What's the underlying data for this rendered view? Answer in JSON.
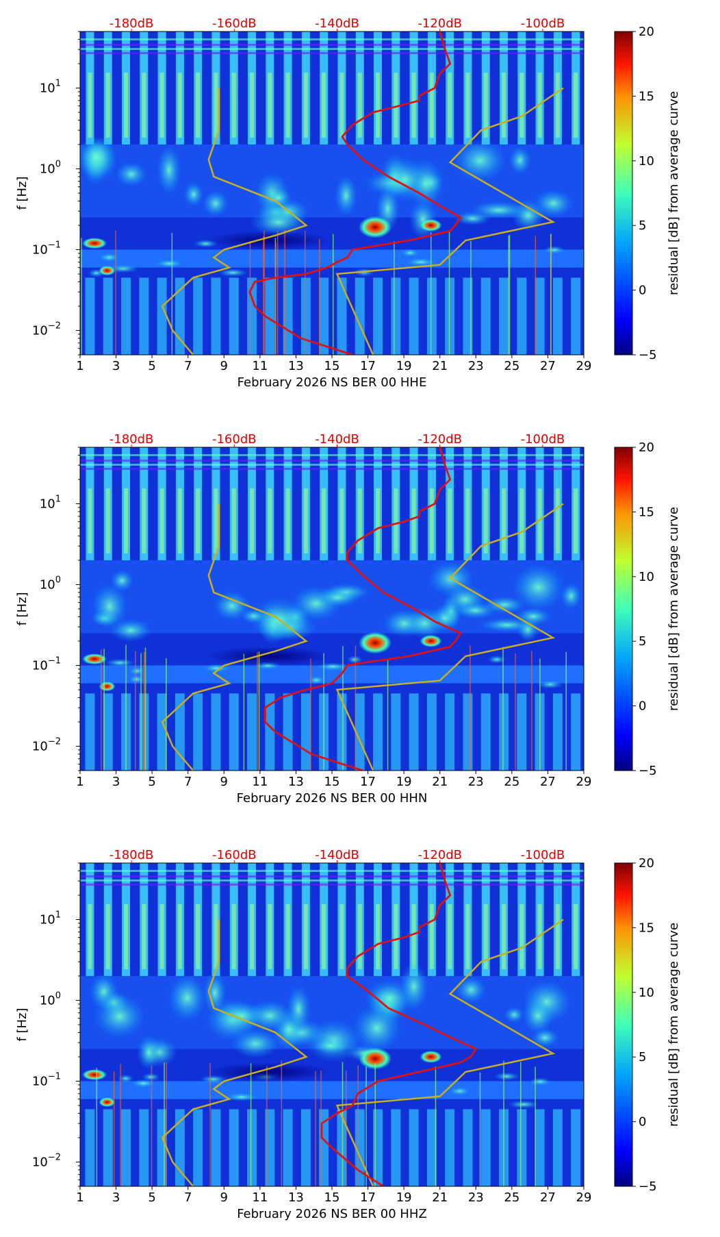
{
  "chart_data": [
    {
      "type": "heatmap",
      "xlabel": "February 2026 NS BER 00 HHE",
      "ylabel": "f [Hz]",
      "x_ticks": [
        "1",
        "3",
        "5",
        "7",
        "9",
        "11",
        "13",
        "15",
        "17",
        "19",
        "21",
        "23",
        "25",
        "27",
        "29"
      ],
      "xlim": [
        1,
        29
      ],
      "y_scale": "log",
      "ylim": [
        0.005,
        50
      ],
      "y_ticks": [
        {
          "value": 0.01,
          "base": "10",
          "exp": "−2"
        },
        {
          "value": 0.1,
          "base": "10",
          "exp": "−1"
        },
        {
          "value": 1,
          "base": "10",
          "exp": "0"
        },
        {
          "value": 10,
          "base": "10",
          "exp": "1"
        }
      ],
      "top_ticks": [
        "-180dB",
        "-160dB",
        "-140dB",
        "-120dB",
        "-100dB"
      ],
      "top_tick_color": "#e00000",
      "colorbar": {
        "label": "residual [dB] from average curve",
        "min": -5,
        "max": 20,
        "ticks": [
          "−5",
          "0",
          "5",
          "10",
          "15",
          "20"
        ]
      },
      "curve_color": "#e01010",
      "model_color": "#c8b020",
      "median_curve_db_vs_f": [
        [
          -137,
          0.005
        ],
        [
          -147,
          0.008
        ],
        [
          -154,
          0.015
        ],
        [
          -156,
          0.02
        ],
        [
          -157,
          0.03
        ],
        [
          -156,
          0.04
        ],
        [
          -152,
          0.045
        ],
        [
          -146,
          0.05
        ],
        [
          -142,
          0.06
        ],
        [
          -140,
          0.07
        ],
        [
          -138,
          0.08
        ],
        [
          -137,
          0.1
        ],
        [
          -133,
          0.11
        ],
        [
          -126,
          0.13
        ],
        [
          -118,
          0.17
        ],
        [
          -117,
          0.2
        ],
        [
          -116,
          0.25
        ],
        [
          -120,
          0.35
        ],
        [
          -124,
          0.5
        ],
        [
          -130,
          0.8
        ],
        [
          -135,
          1.3
        ],
        [
          -138,
          2.0
        ],
        [
          -139,
          2.5
        ],
        [
          -137,
          3.5
        ],
        [
          -133,
          5
        ],
        [
          -128,
          6
        ],
        [
          -124,
          7
        ],
        [
          -124,
          8
        ],
        [
          -121,
          10
        ],
        [
          -120,
          15
        ],
        [
          -118,
          20
        ],
        [
          -119,
          30
        ],
        [
          -120,
          50
        ]
      ],
      "noise_model_db_vs_f": {
        "low": [
          [
            -168,
            0.005
          ],
          [
            -172,
            0.01
          ],
          [
            -174,
            0.02
          ],
          [
            -168,
            0.045
          ],
          [
            -161,
            0.06
          ],
          [
            -164,
            0.08
          ],
          [
            -162,
            0.1
          ],
          [
            -152,
            0.15
          ],
          [
            -146,
            0.2
          ],
          [
            -152,
            0.4
          ],
          [
            -164,
            0.8
          ],
          [
            -165,
            1.3
          ],
          [
            -163,
            3
          ],
          [
            -163,
            10
          ]
        ],
        "high": [
          [
            -133,
            0.005
          ],
          [
            -140,
            0.05
          ],
          [
            -120,
            0.065
          ],
          [
            -115,
            0.13
          ],
          [
            -98,
            0.22
          ],
          [
            -118,
            1.2
          ],
          [
            -112,
            3
          ],
          [
            -104,
            4.5
          ],
          [
            -96,
            10
          ]
        ]
      }
    },
    {
      "type": "heatmap",
      "xlabel": "February 2026 NS BER 00 HHN",
      "ylabel": "f [Hz]",
      "x_ticks": [
        "1",
        "3",
        "5",
        "7",
        "9",
        "11",
        "13",
        "15",
        "17",
        "19",
        "21",
        "23",
        "25",
        "27",
        "29"
      ],
      "xlim": [
        1,
        29
      ],
      "y_scale": "log",
      "ylim": [
        0.005,
        50
      ],
      "y_ticks": [
        {
          "value": 0.01,
          "base": "10",
          "exp": "−2"
        },
        {
          "value": 0.1,
          "base": "10",
          "exp": "−1"
        },
        {
          "value": 1,
          "base": "10",
          "exp": "0"
        },
        {
          "value": 10,
          "base": "10",
          "exp": "1"
        }
      ],
      "top_ticks": [
        "-180dB",
        "-160dB",
        "-140dB",
        "-120dB",
        "-100dB"
      ],
      "top_tick_color": "#e00000",
      "colorbar": {
        "label": "residual [dB] from average curve",
        "min": -5,
        "max": 20,
        "ticks": [
          "−5",
          "0",
          "5",
          "10",
          "15",
          "20"
        ]
      },
      "curve_color": "#e01010",
      "model_color": "#c8b020",
      "median_curve_db_vs_f": [
        [
          -135,
          0.005
        ],
        [
          -145,
          0.008
        ],
        [
          -152,
          0.015
        ],
        [
          -154,
          0.02
        ],
        [
          -154,
          0.03
        ],
        [
          -151,
          0.04
        ],
        [
          -146,
          0.05
        ],
        [
          -141,
          0.06
        ],
        [
          -139,
          0.08
        ],
        [
          -138,
          0.1
        ],
        [
          -134,
          0.11
        ],
        [
          -126,
          0.13
        ],
        [
          -118,
          0.17
        ],
        [
          -117,
          0.2
        ],
        [
          -116,
          0.25
        ],
        [
          -121,
          0.35
        ],
        [
          -125,
          0.5
        ],
        [
          -131,
          0.8
        ],
        [
          -135,
          1.3
        ],
        [
          -138,
          2.0
        ],
        [
          -138,
          2.5
        ],
        [
          -136,
          3.5
        ],
        [
          -132,
          5
        ],
        [
          -127,
          6
        ],
        [
          -124,
          7
        ],
        [
          -124,
          8
        ],
        [
          -121,
          10
        ],
        [
          -120,
          15
        ],
        [
          -118,
          20
        ],
        [
          -119,
          30
        ],
        [
          -120,
          50
        ]
      ],
      "noise_model_db_vs_f": {
        "low": [
          [
            -168,
            0.005
          ],
          [
            -172,
            0.01
          ],
          [
            -174,
            0.02
          ],
          [
            -168,
            0.045
          ],
          [
            -161,
            0.06
          ],
          [
            -164,
            0.08
          ],
          [
            -162,
            0.1
          ],
          [
            -152,
            0.15
          ],
          [
            -146,
            0.2
          ],
          [
            -152,
            0.4
          ],
          [
            -164,
            0.8
          ],
          [
            -165,
            1.3
          ],
          [
            -163,
            3
          ],
          [
            -163,
            10
          ]
        ],
        "high": [
          [
            -133,
            0.005
          ],
          [
            -140,
            0.05
          ],
          [
            -120,
            0.065
          ],
          [
            -115,
            0.13
          ],
          [
            -98,
            0.22
          ],
          [
            -118,
            1.2
          ],
          [
            -112,
            3
          ],
          [
            -104,
            4.5
          ],
          [
            -96,
            10
          ]
        ]
      }
    },
    {
      "type": "heatmap",
      "xlabel": "February 2026 NS BER 00 HHZ",
      "ylabel": "f [Hz]",
      "x_ticks": [
        "1",
        "3",
        "5",
        "7",
        "9",
        "11",
        "13",
        "15",
        "17",
        "19",
        "21",
        "23",
        "25",
        "27",
        "29"
      ],
      "xlim": [
        1,
        29
      ],
      "y_scale": "log",
      "ylim": [
        0.005,
        50
      ],
      "y_ticks": [
        {
          "value": 0.01,
          "base": "10",
          "exp": "−2"
        },
        {
          "value": 0.1,
          "base": "10",
          "exp": "−1"
        },
        {
          "value": 1,
          "base": "10",
          "exp": "0"
        },
        {
          "value": 10,
          "base": "10",
          "exp": "1"
        }
      ],
      "top_ticks": [
        "-180dB",
        "-160dB",
        "-140dB",
        "-120dB",
        "-100dB"
      ],
      "top_tick_color": "#e00000",
      "colorbar": {
        "label": "residual [dB] from average curve",
        "min": -5,
        "max": 20,
        "ticks": [
          "−5",
          "0",
          "5",
          "10",
          "15",
          "20"
        ]
      },
      "curve_color": "#e01010",
      "model_color": "#c8b020",
      "median_curve_db_vs_f": [
        [
          -131,
          0.005
        ],
        [
          -136,
          0.008
        ],
        [
          -141,
          0.015
        ],
        [
          -143,
          0.02
        ],
        [
          -143,
          0.03
        ],
        [
          -140,
          0.04
        ],
        [
          -137,
          0.05
        ],
        [
          -136,
          0.07
        ],
        [
          -132,
          0.1
        ],
        [
          -124,
          0.13
        ],
        [
          -116,
          0.17
        ],
        [
          -114,
          0.2
        ],
        [
          -113,
          0.25
        ],
        [
          -118,
          0.35
        ],
        [
          -123,
          0.5
        ],
        [
          -130,
          0.8
        ],
        [
          -134,
          1.3
        ],
        [
          -138,
          2.0
        ],
        [
          -138,
          2.5
        ],
        [
          -136,
          3.5
        ],
        [
          -132,
          5
        ],
        [
          -127,
          6
        ],
        [
          -124,
          7
        ],
        [
          -124,
          8
        ],
        [
          -121,
          10
        ],
        [
          -120,
          15
        ],
        [
          -118,
          20
        ],
        [
          -119,
          30
        ],
        [
          -120,
          50
        ]
      ],
      "noise_model_db_vs_f": {
        "low": [
          [
            -168,
            0.005
          ],
          [
            -172,
            0.01
          ],
          [
            -174,
            0.02
          ],
          [
            -168,
            0.045
          ],
          [
            -161,
            0.06
          ],
          [
            -164,
            0.08
          ],
          [
            -162,
            0.1
          ],
          [
            -152,
            0.15
          ],
          [
            -146,
            0.2
          ],
          [
            -152,
            0.4
          ],
          [
            -164,
            0.8
          ],
          [
            -165,
            1.3
          ],
          [
            -163,
            3
          ],
          [
            -163,
            10
          ]
        ],
        "high": [
          [
            -133,
            0.005
          ],
          [
            -140,
            0.05
          ],
          [
            -120,
            0.065
          ],
          [
            -115,
            0.13
          ],
          [
            -98,
            0.22
          ],
          [
            -118,
            1.2
          ],
          [
            -112,
            3
          ],
          [
            -104,
            4.5
          ],
          [
            -96,
            10
          ]
        ]
      }
    }
  ]
}
